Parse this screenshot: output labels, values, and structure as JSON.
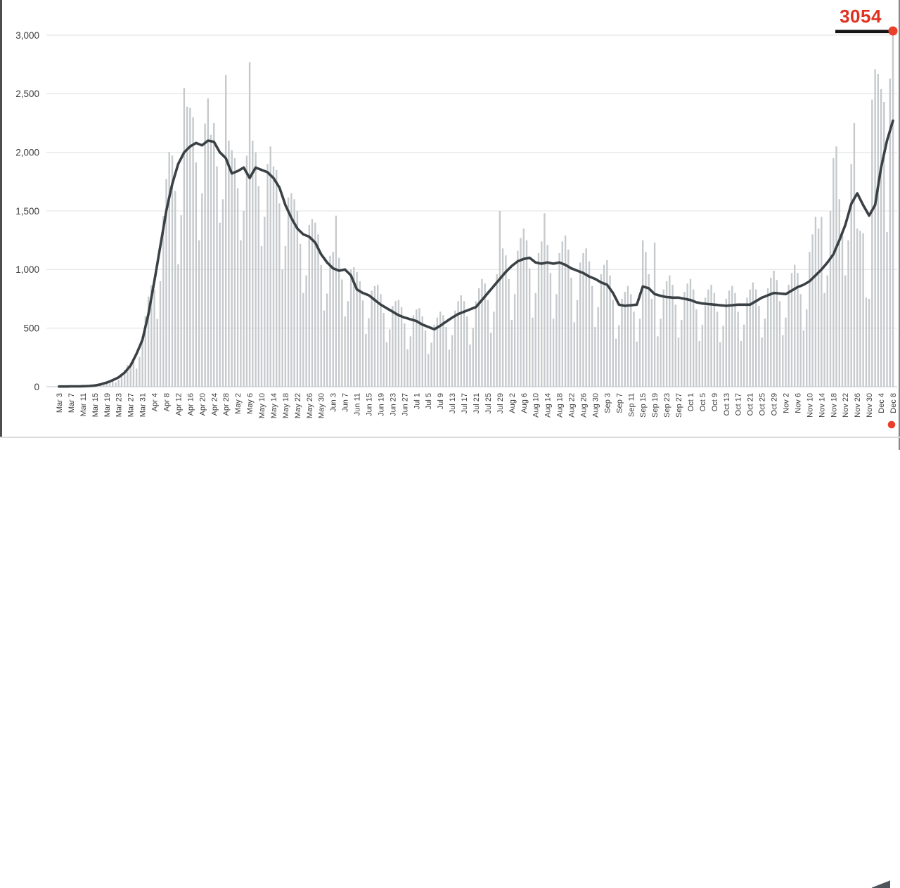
{
  "annotation": {
    "value": "3054",
    "color": "#e03120",
    "pointer_line_color": "#141414",
    "endpoint_dot_color": "#e8402a"
  },
  "colors": {
    "bar": "#c6cacc",
    "average_line": "#3a4145",
    "gridline": "#e7e8e9",
    "baseline": "#c9cdd0",
    "tick_text": "#3c3c3c",
    "background": "#ffffff"
  },
  "chart_data": {
    "type": "bar",
    "title": "",
    "xlabel": "",
    "ylabel": "",
    "x_start": "Mar 3",
    "x_end": "Dec 8",
    "tick_interval_days": 4,
    "grid": "horizontal",
    "legend": "none",
    "ylim": [
      0,
      3054
    ],
    "yticks": [
      0,
      500,
      1000,
      1500,
      2000,
      2500,
      3000
    ],
    "ytick_labels": [
      "0",
      "500",
      "1,000",
      "1,500",
      "2,000",
      "2,500",
      "3,000"
    ],
    "tick_labels": [
      "Mar 3",
      "Mar 7",
      "Mar 11",
      "Mar 15",
      "Mar 19",
      "Mar 23",
      "Mar 27",
      "Mar 31",
      "Apr 4",
      "Apr 8",
      "Apr 12",
      "Apr 16",
      "Apr 20",
      "Apr 24",
      "Apr 28",
      "May 2",
      "May 6",
      "May 10",
      "May 14",
      "May 18",
      "May 22",
      "May 26",
      "May 30",
      "Jun 3",
      "Jun 7",
      "Jun 11",
      "Jun 15",
      "Jun 19",
      "Jun 23",
      "Jun 27",
      "Jul 1",
      "Jul 5",
      "Jul 9",
      "Jul 13",
      "Jul 17",
      "Jul 21",
      "Jul 25",
      "Jul 29",
      "Aug 2",
      "Aug 6",
      "Aug 10",
      "Aug 14",
      "Aug 18",
      "Aug 22",
      "Aug 26",
      "Aug 30",
      "Sep 3",
      "Sep 7",
      "Sep 11",
      "Sep 15",
      "Sep 19",
      "Sep 23",
      "Sep 27",
      "Oct 1",
      "Oct 5",
      "Oct 9",
      "Oct 13",
      "Oct 17",
      "Oct 21",
      "Oct 25",
      "Oct 29",
      "Nov 2",
      "Nov 6",
      "Nov 10",
      "Nov 14",
      "Nov 18",
      "Nov 22",
      "Nov 26",
      "Nov 30",
      "Dec 4",
      "Dec 8"
    ],
    "series": [
      {
        "name": "daily-count-bars",
        "type": "bar",
        "color": "#c6cacc",
        "values": [
          2,
          2,
          2,
          2,
          3,
          2,
          2,
          3,
          5,
          6,
          7,
          7,
          6,
          11,
          22,
          33,
          43,
          51,
          51,
          37,
          60,
          108,
          142,
          186,
          205,
          212,
          154,
          255,
          432,
          602,
          769,
          866,
          828,
          578,
          900,
          1458,
          1770,
          2003,
          1972,
          1670,
          1045,
          1463,
          2550,
          2390,
          2380,
          2300,
          1914,
          1250,
          1650,
          2246,
          2460,
          2150,
          2250,
          1881,
          1400,
          1600,
          2660,
          2100,
          2020,
          1950,
          1693,
          1250,
          1500,
          1971,
          2770,
          2100,
          2000,
          1711,
          1200,
          1450,
          1900,
          2050,
          1880,
          1850,
          1564,
          1000,
          1200,
          1615,
          1650,
          1600,
          1500,
          1219,
          800,
          950,
          1380,
          1430,
          1400,
          1300,
          1040,
          650,
          795,
          1118,
          1150,
          1460,
          1100,
          915,
          600,
          730,
          1000,
          1020,
          980,
          900,
          736,
          450,
          585,
          820,
          860,
          870,
          790,
          630,
          380,
          490,
          690,
          730,
          740,
          680,
          540,
          320,
          430,
          610,
          660,
          670,
          600,
          480,
          280,
          375,
          530,
          590,
          640,
          610,
          510,
          315,
          440,
          650,
          730,
          780,
          730,
          600,
          360,
          500,
          730,
          840,
          920,
          880,
          740,
          460,
          640,
          960,
          1500,
          1180,
          1120,
          920,
          570,
          790,
          1160,
          1270,
          1350,
          1250,
          1010,
          590,
          800,
          1140,
          1240,
          1480,
          1210,
          970,
          580,
          790,
          1140,
          1240,
          1290,
          1170,
          930,
          550,
          740,
          1060,
          1140,
          1180,
          1070,
          860,
          510,
          680,
          960,
          1040,
          1080,
          950,
          740,
          410,
          525,
          750,
          810,
          860,
          790,
          640,
          385,
          580,
          1250,
          1150,
          960,
          750,
          1230,
          430,
          580,
          830,
          900,
          950,
          870,
          700,
          420,
          570,
          810,
          880,
          920,
          830,
          660,
          390,
          530,
          760,
          830,
          870,
          800,
          640,
          380,
          520,
          750,
          820,
          860,
          800,
          640,
          390,
          530,
          760,
          830,
          890,
          830,
          690,
          420,
          580,
          840,
          930,
          990,
          910,
          730,
          440,
          590,
          870,
          970,
          1040,
          970,
          790,
          480,
          660,
          1150,
          1300,
          1450,
          1350,
          1450,
          800,
          950,
          1500,
          1950,
          2050,
          1600,
          1300,
          950,
          1250,
          1900,
          2250,
          1350,
          1330,
          1310,
          760,
          750,
          2450,
          2710,
          2670,
          2540,
          2430,
          1320,
          2630,
          3054
        ]
      },
      {
        "name": "seven-day-average-line",
        "type": "line",
        "color": "#3a4145",
        "values": [
          2,
          2,
          2,
          2,
          3,
          3,
          3,
          3,
          4,
          5,
          6,
          8,
          10,
          15,
          20,
          28,
          35,
          45,
          55,
          68,
          80,
          100,
          120,
          150,
          180,
          230,
          280,
          340,
          400,
          510,
          620,
          760,
          900,
          1050,
          1200,
          1350,
          1500,
          1615,
          1730,
          1815,
          1900,
          1950,
          2000,
          2025,
          2050,
          2065,
          2080,
          2070,
          2060,
          2080,
          2100,
          2095,
          2090,
          2045,
          2000,
          1975,
          1950,
          1885,
          1820,
          1830,
          1840,
          1855,
          1870,
          1825,
          1780,
          1825,
          1870,
          1860,
          1850,
          1840,
          1830,
          1805,
          1780,
          1740,
          1700,
          1625,
          1550,
          1495,
          1440,
          1395,
          1350,
          1325,
          1300,
          1290,
          1280,
          1255,
          1230,
          1180,
          1130,
          1095,
          1060,
          1035,
          1010,
          1000,
          990,
          995,
          1000,
          975,
          950,
          890,
          830,
          815,
          800,
          790,
          780,
          760,
          740,
          720,
          700,
          685,
          670,
          655,
          640,
          625,
          610,
          600,
          590,
          583,
          575,
          568,
          560,
          545,
          530,
          520,
          510,
          500,
          490,
          505,
          520,
          538,
          555,
          573,
          590,
          605,
          620,
          630,
          640,
          650,
          660,
          670,
          680,
          710,
          740,
          770,
          800,
          830,
          860,
          890,
          920,
          950,
          980,
          1005,
          1030,
          1050,
          1070,
          1080,
          1090,
          1095,
          1100,
          1080,
          1060,
          1055,
          1050,
          1055,
          1060,
          1055,
          1050,
          1055,
          1060,
          1050,
          1040,
          1025,
          1010,
          1000,
          990,
          980,
          970,
          955,
          940,
          930,
          920,
          905,
          890,
          880,
          870,
          835,
          800,
          750,
          700,
          695,
          690,
          693,
          695,
          698,
          700,
          778,
          855,
          848,
          840,
          815,
          790,
          783,
          775,
          770,
          765,
          763,
          760,
          760,
          760,
          755,
          750,
          745,
          740,
          730,
          720,
          715,
          710,
          708,
          705,
          703,
          700,
          698,
          695,
          693,
          690,
          693,
          695,
          698,
          700,
          700,
          700,
          700,
          700,
          715,
          730,
          745,
          760,
          770,
          780,
          790,
          800,
          798,
          795,
          793,
          790,
          805,
          820,
          835,
          850,
          860,
          870,
          885,
          900,
          925,
          950,
          975,
          1000,
          1030,
          1060,
          1095,
          1130,
          1190,
          1250,
          1315,
          1380,
          1470,
          1560,
          1605,
          1650,
          1600,
          1550,
          1505,
          1460,
          1505,
          1550,
          1710,
          1870,
          1985,
          2100,
          2185,
          2270
        ]
      }
    ],
    "endpoint_markers": {
      "top_dot_value": 3054,
      "bottom_dot_label": "Dec 8",
      "color": "#e8402a"
    }
  }
}
